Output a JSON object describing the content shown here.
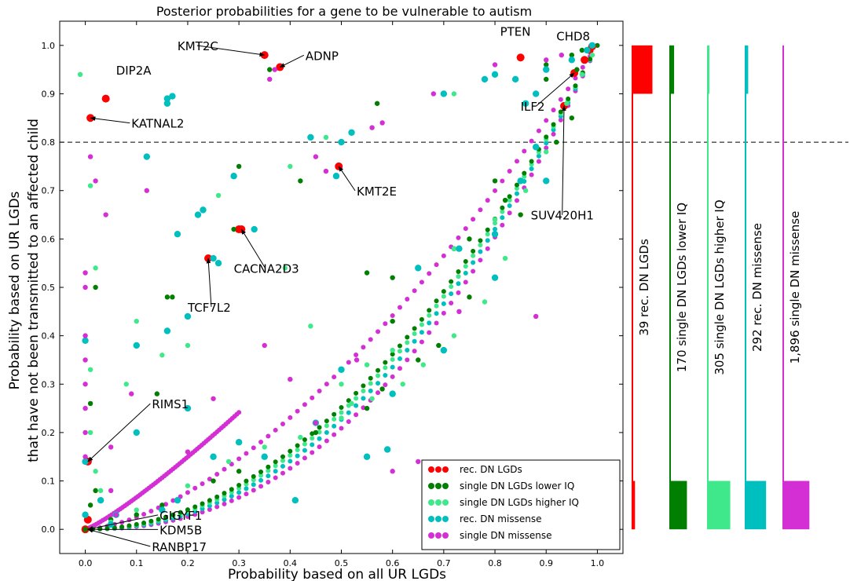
{
  "figure": {
    "title": "Posterior probabilities for a gene to be vulnerable to autism",
    "xlabel": "Probability based on all UR LGDs",
    "ylabel_line1": "Probability based on UR LGDs",
    "ylabel_line2": "that have not been transmitted to an affected child"
  },
  "colors": {
    "rec_dn_lgds": "#ff0000",
    "single_dn_lgds_lower_iq": "#007f00",
    "single_dn_lgds_higher_iq": "#3fe88a",
    "rec_dn_missense": "#00bfbf",
    "single_dn_missense": "#d42fd4",
    "threshold": "#000000"
  },
  "chart_data": {
    "type": "scatter",
    "xlim": [
      -0.05,
      1.05
    ],
    "ylim": [
      -0.05,
      1.05
    ],
    "x_ticks": [
      "0.0",
      "0.1",
      "0.2",
      "0.3",
      "0.4",
      "0.5",
      "0.6",
      "0.7",
      "0.8",
      "0.9",
      "1.0"
    ],
    "y_ticks": [
      "0.0",
      "0.1",
      "0.2",
      "0.3",
      "0.4",
      "0.5",
      "0.6",
      "0.7",
      "0.8",
      "0.9",
      "1.0"
    ],
    "threshold_y": 0.8,
    "legend_position": "bottom-right",
    "legend": [
      {
        "label": "rec. DN LGDs",
        "color": "#ff0000"
      },
      {
        "label": "single DN LGDs lower IQ",
        "color": "#007f00"
      },
      {
        "label": "single DN LGDs higher IQ",
        "color": "#3fe88a"
      },
      {
        "label": "rec. DN missense",
        "color": "#00bfbf"
      },
      {
        "label": "single DN missense",
        "color": "#d42fd4"
      }
    ],
    "series": [
      {
        "name": "rec. DN LGDs",
        "color": "#ff0000",
        "points": [
          [
            0.04,
            0.89
          ],
          [
            0.01,
            0.85
          ],
          [
            0.35,
            0.98
          ],
          [
            0.38,
            0.955
          ],
          [
            0.85,
            0.975
          ],
          [
            0.99,
            0.998
          ],
          [
            0.985,
            0.99
          ],
          [
            0.975,
            0.97
          ],
          [
            0.955,
            0.943
          ],
          [
            0.935,
            0.875
          ],
          [
            0.495,
            0.75
          ],
          [
            0.305,
            0.62
          ],
          [
            0.24,
            0.56
          ],
          [
            0.0,
            0.0
          ],
          [
            0.005,
            0.02
          ],
          [
            0.005,
            0.14
          ],
          [
            0.3,
            0.62
          ]
        ]
      },
      {
        "name": "single DN LGDs lower IQ",
        "color": "#007f00",
        "points": [
          [
            0.0,
            0.0
          ],
          [
            0.01,
            0.05
          ],
          [
            0.02,
            0.08
          ],
          [
            0.01,
            0.26
          ],
          [
            0.02,
            0.5
          ],
          [
            0.14,
            0.28
          ],
          [
            0.16,
            0.48
          ],
          [
            0.17,
            0.48
          ],
          [
            0.29,
            0.62
          ],
          [
            0.3,
            0.75
          ],
          [
            0.36,
            0.95
          ],
          [
            0.42,
            0.72
          ],
          [
            0.57,
            0.88
          ],
          [
            0.55,
            0.53
          ],
          [
            0.6,
            0.52
          ],
          [
            0.6,
            0.43
          ],
          [
            0.58,
            0.29
          ],
          [
            0.9,
            0.96
          ],
          [
            0.95,
            0.98
          ],
          [
            0.97,
            0.99
          ],
          [
            0.96,
            0.95
          ],
          [
            0.9,
            0.93
          ],
          [
            0.75,
            0.6
          ],
          [
            0.72,
            0.58
          ],
          [
            0.8,
            0.72
          ],
          [
            0.15,
            0.05
          ],
          [
            0.3,
            0.12
          ],
          [
            0.45,
            0.2
          ],
          [
            0.55,
            0.25
          ],
          [
            0.65,
            0.35
          ],
          [
            0.75,
            0.48
          ],
          [
            0.85,
            0.65
          ],
          [
            0.92,
            0.8
          ],
          [
            0.95,
            0.85
          ],
          [
            0.25,
            0.1
          ],
          [
            0.1,
            0.03
          ],
          [
            0.05,
            0.02
          ],
          [
            0.69,
            0.38
          ],
          [
            0.82,
            0.68
          ]
        ]
      },
      {
        "name": "single DN LGDs higher IQ",
        "color": "#3fe88a",
        "points": [
          [
            -0.01,
            0.94
          ],
          [
            0.01,
            0.71
          ],
          [
            0.02,
            0.54
          ],
          [
            0.01,
            0.33
          ],
          [
            0.01,
            0.2
          ],
          [
            0.02,
            0.12
          ],
          [
            0.03,
            0.08
          ],
          [
            0.08,
            0.3
          ],
          [
            0.1,
            0.43
          ],
          [
            0.15,
            0.36
          ],
          [
            0.2,
            0.38
          ],
          [
            0.26,
            0.69
          ],
          [
            0.4,
            0.75
          ],
          [
            0.47,
            0.81
          ],
          [
            0.39,
            0.54
          ],
          [
            0.44,
            0.42
          ],
          [
            0.5,
            0.3
          ],
          [
            0.52,
            0.26
          ],
          [
            0.72,
            0.58
          ],
          [
            0.8,
            0.64
          ],
          [
            0.86,
            0.7
          ],
          [
            0.9,
            0.78
          ],
          [
            0.94,
            0.88
          ],
          [
            0.97,
            0.94
          ],
          [
            0.99,
            0.98
          ],
          [
            0.2,
            0.09
          ],
          [
            0.35,
            0.17
          ],
          [
            0.5,
            0.23
          ],
          [
            0.62,
            0.3
          ],
          [
            0.72,
            0.4
          ],
          [
            0.82,
            0.56
          ],
          [
            0.9,
            0.72
          ],
          [
            0.1,
            0.04
          ],
          [
            0.05,
            0.015
          ],
          [
            0.28,
            0.14
          ],
          [
            0.42,
            0.19
          ],
          [
            0.56,
            0.27
          ],
          [
            0.66,
            0.34
          ],
          [
            0.78,
            0.47
          ],
          [
            0.7,
            0.9
          ],
          [
            0.72,
            0.9
          ],
          [
            0.6,
            0.37
          ],
          [
            0.55,
            0.34
          ]
        ]
      },
      {
        "name": "rec. DN missense",
        "color": "#00bfbf",
        "points": [
          [
            0.0,
            0.39
          ],
          [
            0.0,
            0.14
          ],
          [
            0.0,
            0.03
          ],
          [
            0.03,
            0.06
          ],
          [
            0.1,
            0.38
          ],
          [
            0.12,
            0.77
          ],
          [
            0.16,
            0.89
          ],
          [
            0.17,
            0.895
          ],
          [
            0.16,
            0.88
          ],
          [
            0.18,
            0.61
          ],
          [
            0.2,
            0.25
          ],
          [
            0.22,
            0.65
          ],
          [
            0.23,
            0.66
          ],
          [
            0.25,
            0.56
          ],
          [
            0.26,
            0.55
          ],
          [
            0.29,
            0.73
          ],
          [
            0.33,
            0.62
          ],
          [
            0.44,
            0.81
          ],
          [
            0.49,
            0.73
          ],
          [
            0.5,
            0.33
          ],
          [
            0.55,
            0.15
          ],
          [
            0.59,
            0.165
          ],
          [
            0.41,
            0.06
          ],
          [
            0.5,
            0.8
          ],
          [
            0.52,
            0.82
          ],
          [
            0.7,
            0.9
          ],
          [
            0.78,
            0.93
          ],
          [
            0.8,
            0.94
          ],
          [
            0.84,
            0.93
          ],
          [
            0.86,
            0.88
          ],
          [
            0.88,
            0.9
          ],
          [
            0.9,
            0.95
          ],
          [
            0.95,
            0.97
          ],
          [
            0.98,
            0.99
          ],
          [
            0.99,
            1.0
          ],
          [
            0.1,
            0.2
          ],
          [
            0.2,
            0.44
          ],
          [
            0.16,
            0.41
          ],
          [
            0.35,
            0.15
          ],
          [
            0.65,
            0.54
          ],
          [
            0.73,
            0.58
          ],
          [
            0.8,
            0.61
          ],
          [
            0.85,
            0.72
          ],
          [
            0.88,
            0.79
          ],
          [
            0.25,
            0.15
          ],
          [
            0.3,
            0.18
          ],
          [
            0.45,
            0.22
          ],
          [
            0.6,
            0.28
          ],
          [
            0.7,
            0.37
          ],
          [
            0.8,
            0.52
          ],
          [
            0.9,
            0.72
          ],
          [
            0.05,
            0.01
          ],
          [
            0.15,
            0.04
          ],
          [
            0.06,
            0.03
          ],
          [
            0.18,
            0.06
          ]
        ]
      },
      {
        "name": "single DN missense",
        "color": "#d42fd4",
        "points": [
          [
            0.0,
            0.53
          ],
          [
            0.0,
            0.5
          ],
          [
            0.0,
            0.4
          ],
          [
            0.0,
            0.35
          ],
          [
            0.0,
            0.3
          ],
          [
            0.0,
            0.25
          ],
          [
            0.0,
            0.2
          ],
          [
            0.0,
            0.15
          ],
          [
            0.01,
            0.77
          ],
          [
            0.02,
            0.72
          ],
          [
            0.04,
            0.65
          ],
          [
            0.05,
            0.17
          ],
          [
            0.05,
            0.08
          ],
          [
            0.06,
            0.03
          ],
          [
            0.36,
            0.93
          ],
          [
            0.37,
            0.95
          ],
          [
            0.45,
            0.77
          ],
          [
            0.47,
            0.74
          ],
          [
            0.53,
            0.35
          ],
          [
            0.56,
            0.83
          ],
          [
            0.58,
            0.84
          ],
          [
            0.73,
            0.45
          ],
          [
            0.88,
            0.44
          ],
          [
            0.2,
            0.16
          ],
          [
            0.25,
            0.27
          ],
          [
            0.35,
            0.38
          ],
          [
            0.4,
            0.31
          ],
          [
            0.45,
            0.22
          ],
          [
            0.6,
            0.12
          ],
          [
            0.65,
            0.14
          ],
          [
            0.09,
            0.28
          ],
          [
            0.12,
            0.7
          ],
          [
            0.68,
            0.9
          ],
          [
            0.8,
            0.96
          ],
          [
            0.9,
            0.97
          ],
          [
            0.93,
            0.98
          ]
        ]
      }
    ],
    "curves": [
      {
        "name": "upper",
        "color": "#d42fd4",
        "a": 0.06,
        "from": 0.0,
        "to": 0.3
      },
      {
        "name": "mid",
        "color": "#d42fd4",
        "a": 0.2,
        "from": 0.0,
        "to": 1.0
      },
      {
        "name": "lower",
        "color": "#d42fd4",
        "a": 0.42,
        "from": 0.0,
        "to": 1.0
      },
      {
        "name": "low-cyan",
        "color": "#00bfbf",
        "a": 0.38,
        "from": 0.0,
        "to": 1.0
      },
      {
        "name": "low-green",
        "color": "#3fe88a",
        "a": 0.35,
        "from": 0.0,
        "to": 1.0
      },
      {
        "name": "low-darkgreen",
        "color": "#007f00",
        "a": 0.33,
        "from": 0.0,
        "to": 1.0
      }
    ],
    "annotations": [
      {
        "label": "DIP2A",
        "x": 0.04,
        "y": 0.89,
        "tx": 0.06,
        "ty": 0.94,
        "arrow": false
      },
      {
        "label": "KATNAL2",
        "x": 0.01,
        "y": 0.85,
        "tx": 0.09,
        "ty": 0.83,
        "arrow": true
      },
      {
        "label": "KMT2C",
        "x": 0.35,
        "y": 0.98,
        "tx": 0.18,
        "ty": 0.99,
        "arrow": true
      },
      {
        "label": "ADNP",
        "x": 0.38,
        "y": 0.955,
        "tx": 0.43,
        "ty": 0.97,
        "arrow": true
      },
      {
        "label": "PTEN",
        "x": 0.85,
        "y": 0.975,
        "tx": 0.81,
        "ty": 1.02,
        "arrow": false
      },
      {
        "label": "CHD8",
        "x": 0.99,
        "y": 0.998,
        "tx": 0.92,
        "ty": 1.01,
        "arrow": false
      },
      {
        "label": "ILF2",
        "x": 0.955,
        "y": 0.943,
        "tx": 0.85,
        "ty": 0.865,
        "arrow": true
      },
      {
        "label": "SUV420H1",
        "x": 0.935,
        "y": 0.875,
        "tx": 0.87,
        "ty": 0.64,
        "arrow": true
      },
      {
        "label": "KMT2E",
        "x": 0.495,
        "y": 0.75,
        "tx": 0.53,
        "ty": 0.69,
        "arrow": true
      },
      {
        "label": "CACNA2D3",
        "x": 0.305,
        "y": 0.62,
        "tx": 0.29,
        "ty": 0.53,
        "arrow": true
      },
      {
        "label": "TCF7L2",
        "x": 0.24,
        "y": 0.56,
        "tx": 0.2,
        "ty": 0.45,
        "arrow": true
      },
      {
        "label": "RIMS1",
        "x": 0.005,
        "y": 0.14,
        "tx": 0.13,
        "ty": 0.25,
        "arrow": true
      },
      {
        "label": "GIGYF1",
        "x": 0.005,
        "y": 0.0,
        "tx": 0.145,
        "ty": 0.02,
        "arrow": true
      },
      {
        "label": "KDM5B",
        "x": 0.005,
        "y": 0.0,
        "tx": 0.145,
        "ty": -0.01,
        "arrow": true
      },
      {
        "label": "RANBP17",
        "x": 0.005,
        "y": 0.0,
        "tx": 0.13,
        "ty": -0.045,
        "arrow": true
      }
    ]
  },
  "histograms": [
    {
      "label": "39 rec. DN LGDs",
      "color": "#ff0000",
      "low_fraction": 0.07,
      "high_fraction": 0.75
    },
    {
      "label": "170 single DN LGDs lower IQ",
      "color": "#007f00",
      "low_fraction": 0.45,
      "high_fraction": 0.15
    },
    {
      "label": "305 single DN LGDs higher IQ",
      "color": "#3fe88a",
      "low_fraction": 0.6,
      "high_fraction": 0.06
    },
    {
      "label": "292 rec. DN missense",
      "color": "#00bfbf",
      "low_fraction": 0.55,
      "high_fraction": 0.1
    },
    {
      "label": "1,896 single DN missense",
      "color": "#d42fd4",
      "low_fraction": 0.7,
      "high_fraction": 0.01
    }
  ]
}
